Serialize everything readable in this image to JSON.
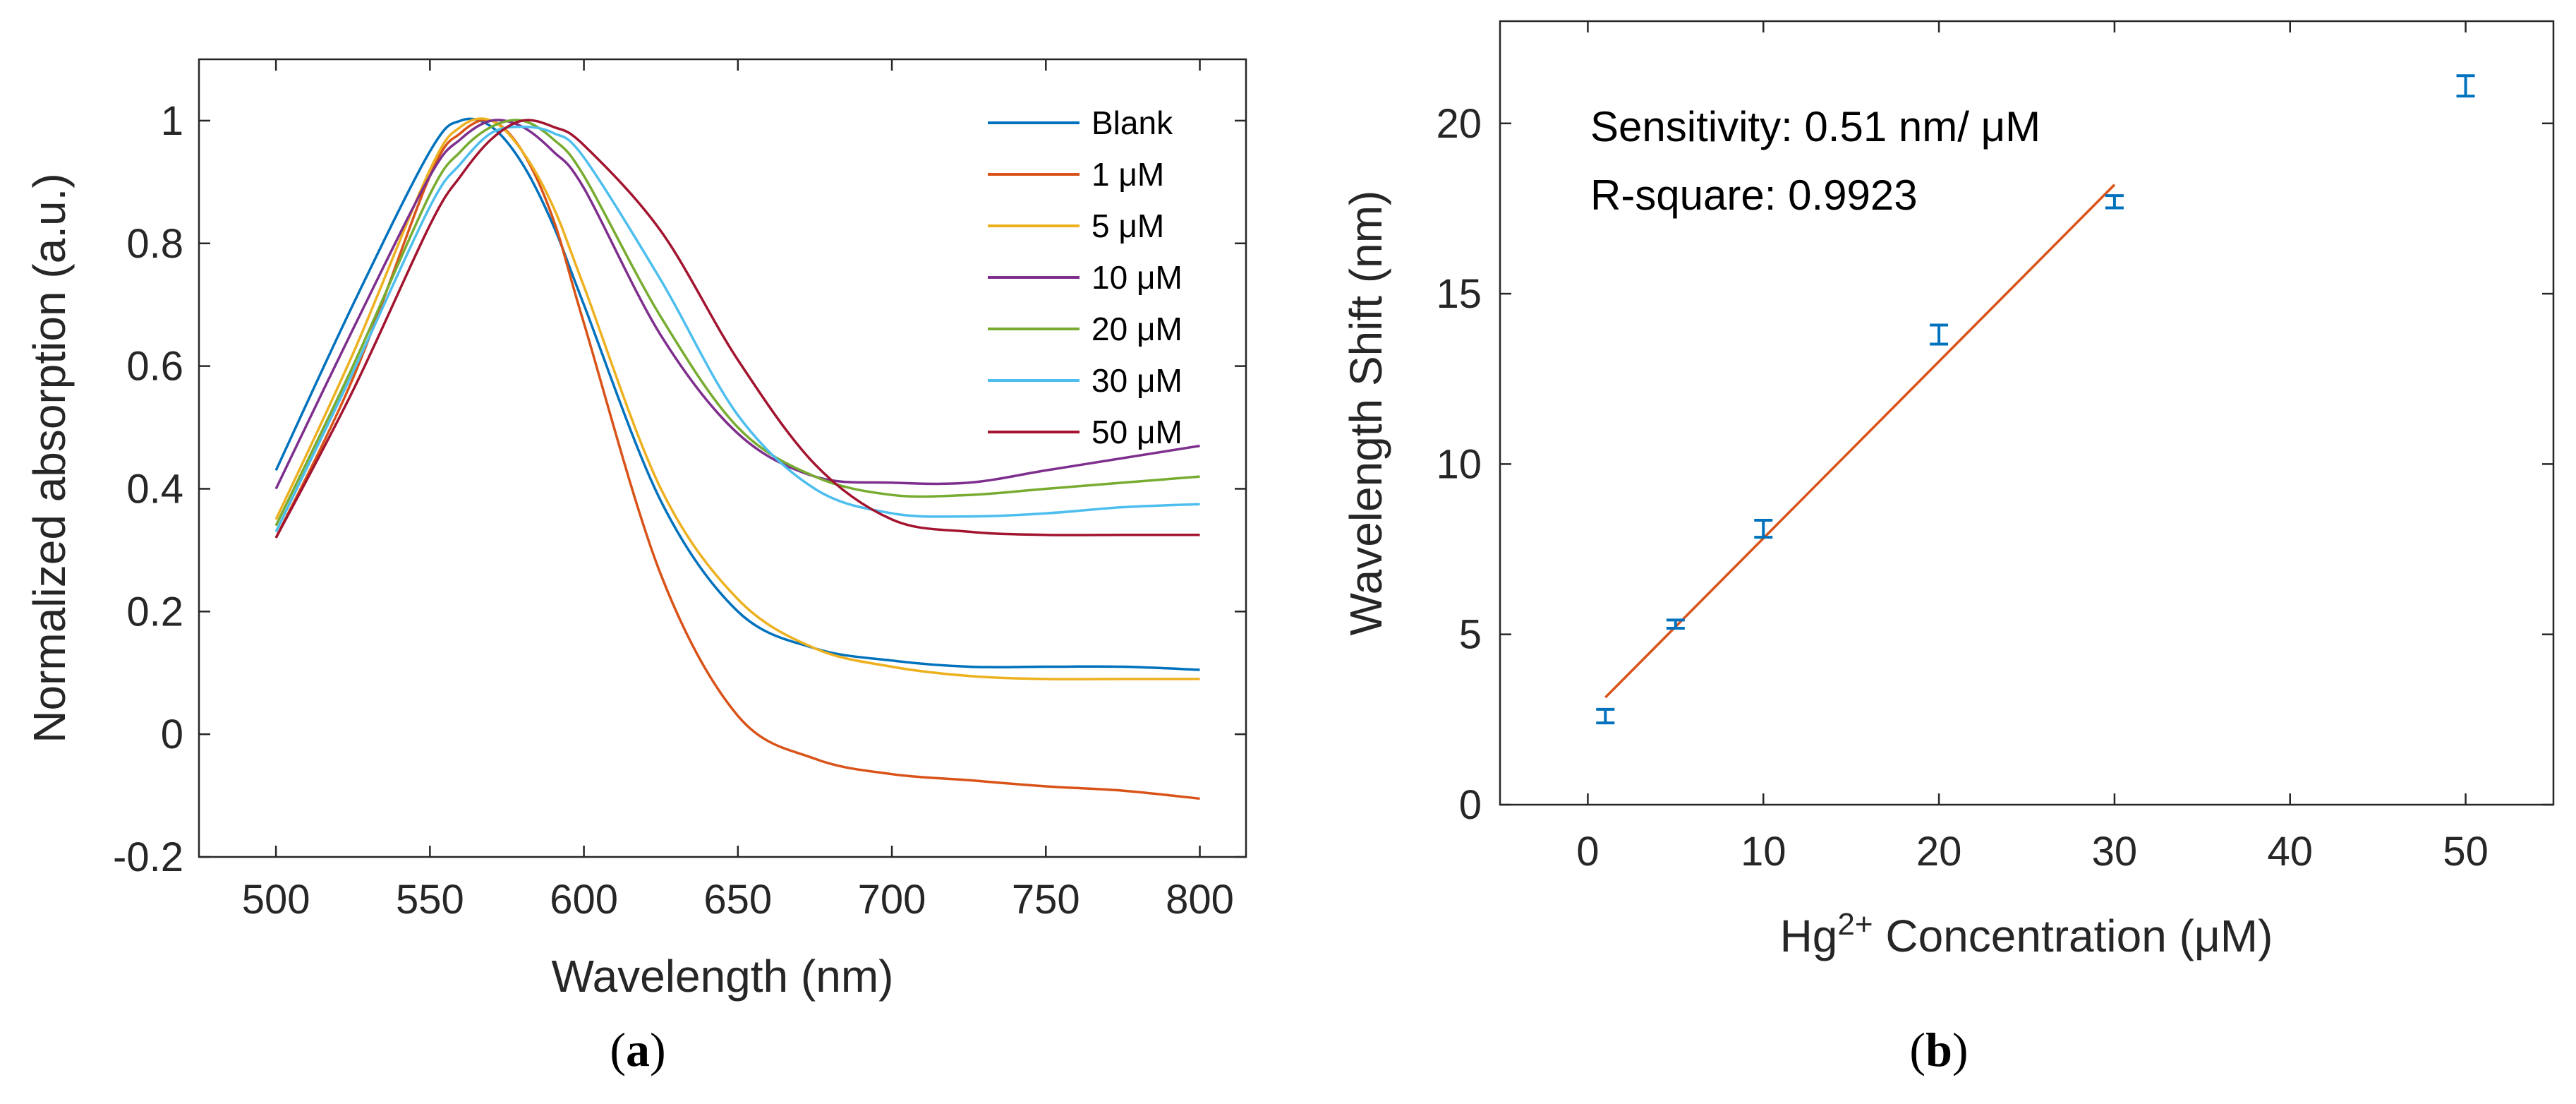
{
  "chart_data": [
    {
      "type": "line",
      "panel_label_open": "(",
      "panel_label_letter": "a",
      "panel_label_close": ")",
      "xlabel": "Wavelength (nm)",
      "ylabel": "Normalized absorption (a.u.)",
      "xlim": [
        475,
        815
      ],
      "ylim": [
        -0.2,
        1.1
      ],
      "xticks": [
        500,
        550,
        600,
        650,
        700,
        750,
        800
      ],
      "xtick_labels": [
        "500",
        "550",
        "600",
        "650",
        "700",
        "750",
        "800"
      ],
      "yticks": [
        -0.2,
        0,
        0.2,
        0.4,
        0.6,
        0.8,
        1
      ],
      "ytick_labels": [
        "-0.2",
        "0",
        "0.2",
        "0.4",
        "0.6",
        "0.8",
        "1"
      ],
      "legend_position": "top-right",
      "x": [
        500,
        525,
        550,
        560,
        570,
        580,
        590,
        600,
        625,
        650,
        675,
        700,
        725,
        750,
        775,
        800
      ],
      "series": [
        {
          "name": "Blank",
          "color": "#0072BD",
          "values": [
            0.43,
            0.7,
            0.95,
            1.0,
            0.99,
            0.93,
            0.83,
            0.7,
            0.38,
            0.2,
            0.14,
            0.12,
            0.11,
            0.11,
            0.11,
            0.105
          ]
        },
        {
          "name": "1 μM",
          "color": "#D95319",
          "values": [
            0.32,
            0.58,
            0.91,
            0.98,
            1.0,
            0.95,
            0.84,
            0.67,
            0.26,
            0.03,
            -0.04,
            -0.065,
            -0.075,
            -0.085,
            -0.092,
            -0.105
          ]
        },
        {
          "name": "5 μM",
          "color": "#EDB120",
          "values": [
            0.35,
            0.62,
            0.92,
            0.99,
            1.0,
            0.95,
            0.86,
            0.73,
            0.4,
            0.22,
            0.14,
            0.11,
            0.095,
            0.09,
            0.09,
            0.09
          ]
        },
        {
          "name": "10 μM",
          "color": "#7E2F8E",
          "values": [
            0.4,
            0.66,
            0.91,
            0.97,
            1.0,
            0.99,
            0.95,
            0.89,
            0.65,
            0.49,
            0.42,
            0.41,
            0.41,
            0.43,
            0.45,
            0.47
          ]
        },
        {
          "name": "20 μM",
          "color": "#77AC30",
          "values": [
            0.34,
            0.6,
            0.88,
            0.95,
            0.99,
            1.0,
            0.97,
            0.91,
            0.68,
            0.5,
            0.42,
            0.39,
            0.39,
            0.4,
            0.41,
            0.42
          ]
        },
        {
          "name": "30 μM",
          "color": "#4DBEEE",
          "values": [
            0.33,
            0.59,
            0.86,
            0.93,
            0.98,
            0.99,
            0.98,
            0.94,
            0.74,
            0.52,
            0.4,
            0.36,
            0.355,
            0.36,
            0.37,
            0.375
          ]
        },
        {
          "name": "50 μM",
          "color": "#A2142F",
          "values": [
            0.32,
            0.56,
            0.83,
            0.91,
            0.97,
            1.0,
            0.99,
            0.96,
            0.82,
            0.61,
            0.44,
            0.35,
            0.33,
            0.325,
            0.325,
            0.325
          ]
        }
      ]
    },
    {
      "type": "scatter",
      "panel_label_open": "(",
      "panel_label_letter": "b",
      "panel_label_close": ")",
      "xlabel_prefix": "Hg",
      "xlabel_superscript": "2+",
      "xlabel_suffix": " Concentration (μM)",
      "ylabel": "Wavelength Shift (nm)",
      "xlim": [
        -5,
        55
      ],
      "ylim": [
        0,
        23
      ],
      "xticks": [
        0,
        10,
        20,
        30,
        40,
        50
      ],
      "xtick_labels": [
        "0",
        "10",
        "20",
        "30",
        "40",
        "50"
      ],
      "yticks": [
        0,
        5,
        10,
        15,
        20
      ],
      "ytick_labels": [
        "0",
        "5",
        "10",
        "15",
        "20"
      ],
      "points": {
        "x": [
          1,
          5,
          10,
          20,
          30,
          50
        ],
        "y": [
          2.6,
          5.3,
          8.1,
          13.8,
          17.7,
          21.1
        ],
        "err": [
          0.2,
          0.12,
          0.25,
          0.28,
          0.18,
          0.3
        ],
        "color": "#0072BD"
      },
      "fit": {
        "x": [
          1,
          30
        ],
        "y": [
          3.15,
          18.2
        ],
        "color": "#D95319"
      },
      "annotations": [
        "Sensitivity: 0.51 nm/ μM",
        "R-square: 0.9923"
      ]
    }
  ]
}
